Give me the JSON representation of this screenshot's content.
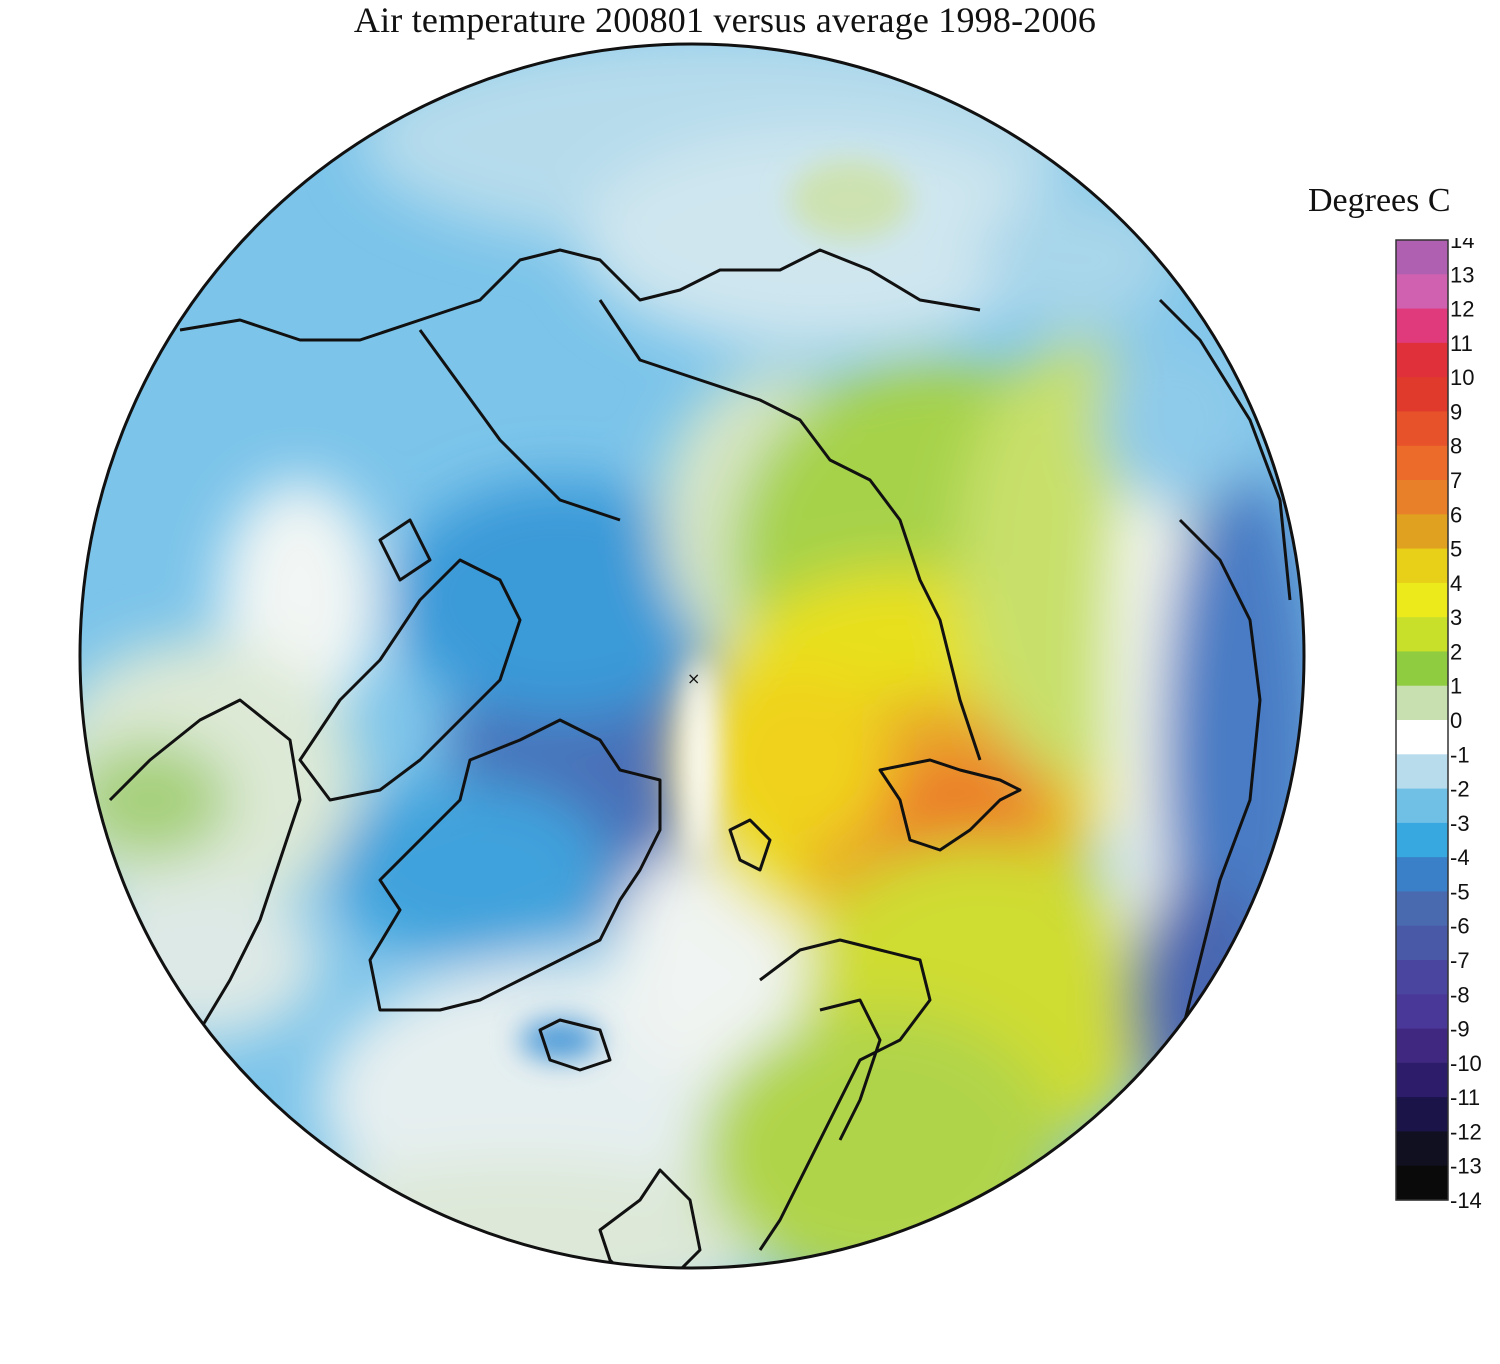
{
  "title": "Air temperature 200801 versus average 1998-2006",
  "legend": {
    "title": "Degrees C",
    "ticks": [
      "14",
      "13",
      "12",
      "11",
      "10",
      "9",
      "8",
      "7",
      "6",
      "5",
      "4",
      "3",
      "2",
      "1",
      "0",
      "-1",
      "-2",
      "-3",
      "-4",
      "-5",
      "-6",
      "-7",
      "-8",
      "-9",
      "-10",
      "-11",
      "-12",
      "-13",
      "-14"
    ],
    "colors": [
      "#b060b0",
      "#d060b0",
      "#e03a7c",
      "#e0303a",
      "#e03a2c",
      "#e8522a",
      "#ec6a2a",
      "#e8802a",
      "#e0a020",
      "#e8cf18",
      "#ecea1a",
      "#c8e02a",
      "#90cc40",
      "#c8e0b0",
      "#ffffff",
      "#b8dcec",
      "#70c0e6",
      "#38a8e0",
      "#3a80c8",
      "#4a6ab0",
      "#4a58a8",
      "#4a46a0",
      "#4a3898",
      "#402880",
      "#2c1c6a",
      "#1a1448",
      "#101020",
      "#0a0a0a",
      "#000000"
    ]
  },
  "map": {
    "projection": "north polar stereographic",
    "variable": "Air temperature anomaly",
    "period": "200801",
    "baseline": "1998-2006",
    "features": [
      "Arctic Ocean",
      "Greenland",
      "Canadian Archipelago",
      "Alaska",
      "Siberia",
      "Scandinavia",
      "Iceland",
      "British Isles"
    ]
  }
}
